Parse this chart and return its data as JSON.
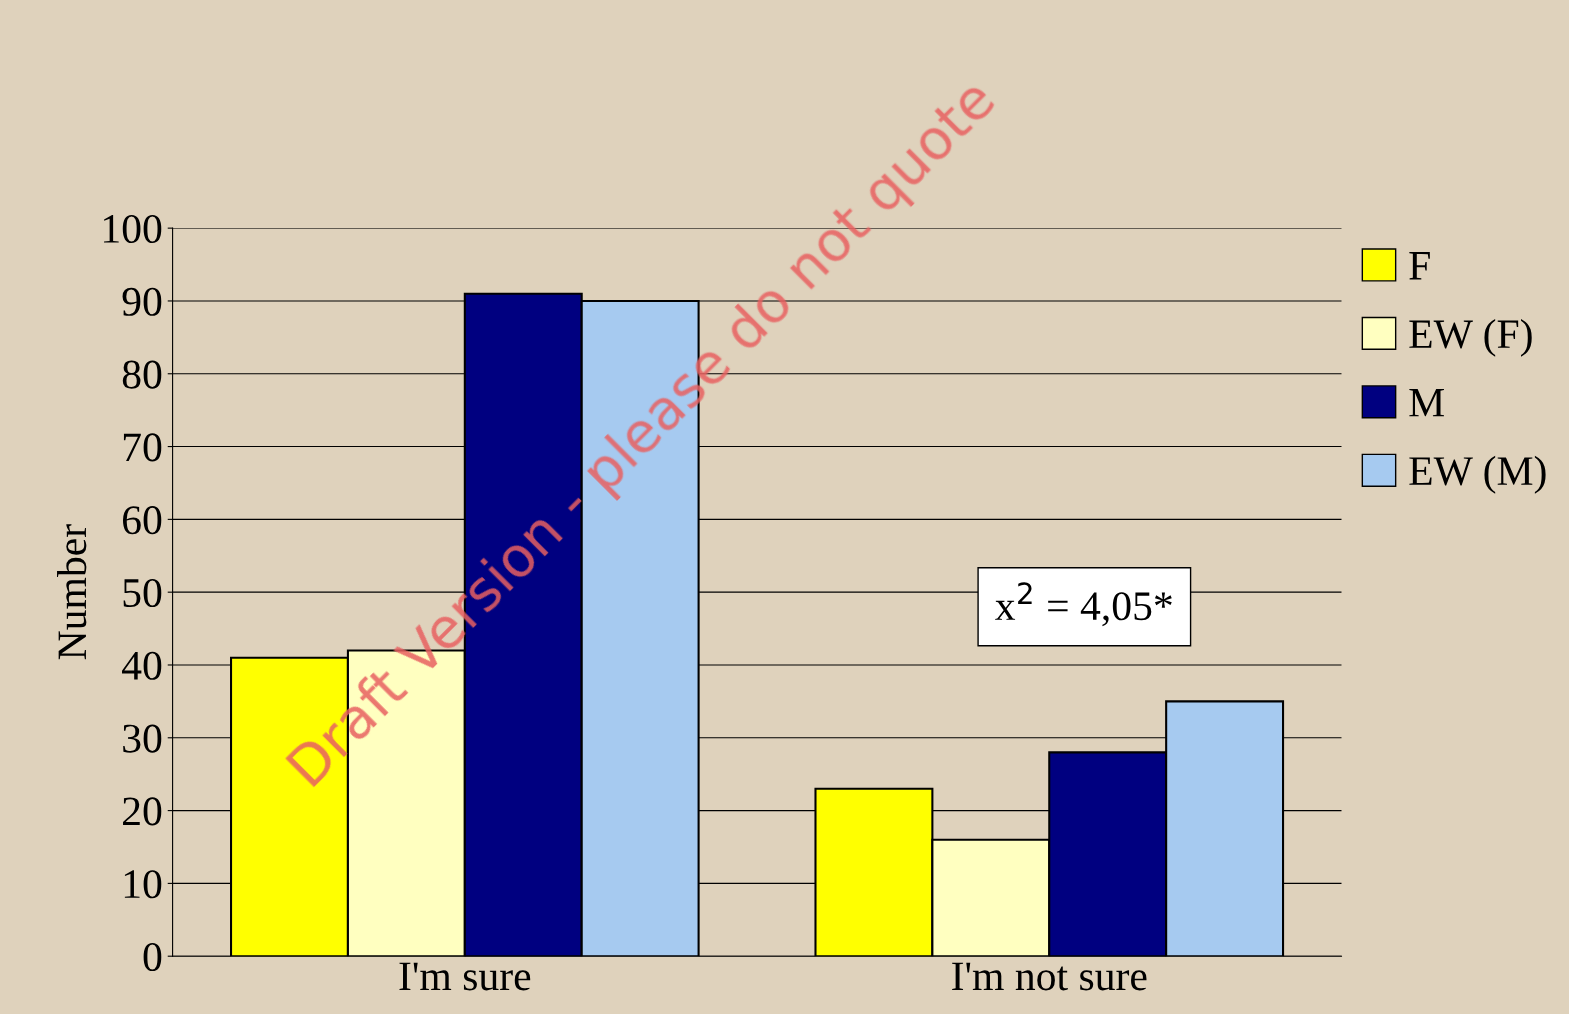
{
  "chart_data": {
    "type": "bar",
    "ylabel": "Number",
    "categories": [
      "I'm sure",
      "I'm not sure"
    ],
    "series": [
      {
        "name": "F",
        "color": "#ffff00",
        "values": [
          41,
          23
        ]
      },
      {
        "name": "EW (F)",
        "color": "#ffffc0",
        "values": [
          42,
          16
        ]
      },
      {
        "name": "M",
        "color": "#000080",
        "values": [
          91,
          28
        ]
      },
      {
        "name": "EW (M)",
        "color": "#a6caf0",
        "values": [
          90,
          35
        ]
      }
    ],
    "ylim": [
      0,
      100
    ],
    "yticks": [
      0,
      10,
      20,
      30,
      40,
      50,
      60,
      70,
      80,
      90,
      100
    ],
    "grid": "y",
    "legend": "right",
    "annotations": [
      "x$^{2}$ = 4,05*",
      "Draft Version - please do not quote"
    ]
  }
}
